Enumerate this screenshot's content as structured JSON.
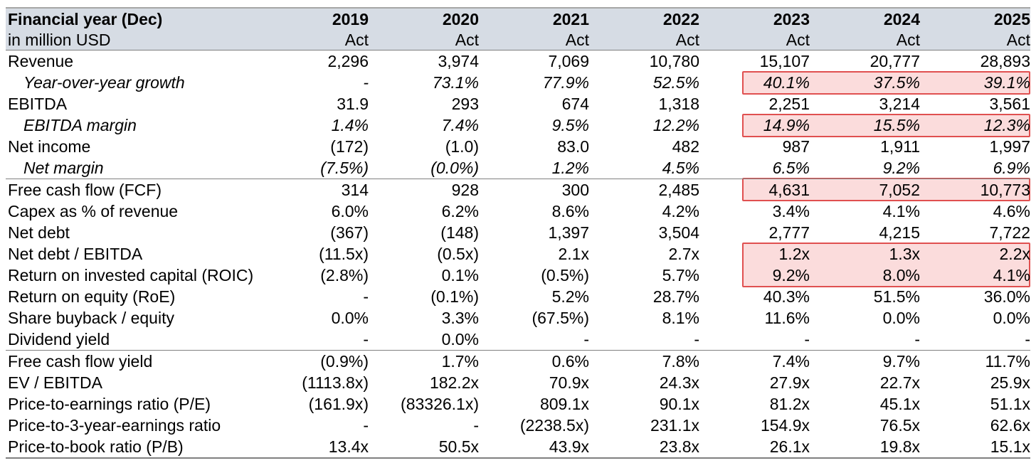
{
  "header": {
    "title": "Financial year (Dec)",
    "subtitle": "in million USD",
    "years": [
      "2019",
      "2020",
      "2021",
      "2022",
      "2023",
      "2024",
      "2025"
    ],
    "basis": [
      "Act",
      "Act",
      "Act",
      "Act",
      "Act",
      "Act",
      "Act"
    ]
  },
  "rows": [
    {
      "label": "Revenue",
      "values": [
        "2,296",
        "3,974",
        "7,069",
        "10,780",
        "15,107",
        "20,777",
        "28,893"
      ]
    },
    {
      "label": "Year-over-year growth",
      "values": [
        "-",
        "73.1%",
        "77.9%",
        "52.5%",
        "40.1%",
        "37.5%",
        "39.1%"
      ]
    },
    {
      "label": "EBITDA",
      "values": [
        "31.9",
        "293",
        "674",
        "1,318",
        "2,251",
        "3,214",
        "3,561"
      ]
    },
    {
      "label": "EBITDA margin",
      "values": [
        "1.4%",
        "7.4%",
        "9.5%",
        "12.2%",
        "14.9%",
        "15.5%",
        "12.3%"
      ]
    },
    {
      "label": "Net income",
      "values": [
        "(172)",
        "(1.0)",
        "83.0",
        "482",
        "987",
        "1,911",
        "1,997"
      ]
    },
    {
      "label": "Net margin",
      "values": [
        "(7.5%)",
        "(0.0%)",
        "1.2%",
        "4.5%",
        "6.5%",
        "9.2%",
        "6.9%"
      ]
    },
    {
      "label": "Free cash flow (FCF)",
      "values": [
        "314",
        "928",
        "300",
        "2,485",
        "4,631",
        "7,052",
        "10,773"
      ]
    },
    {
      "label": "Capex as % of revenue",
      "values": [
        "6.0%",
        "6.2%",
        "8.6%",
        "4.2%",
        "3.4%",
        "4.1%",
        "4.6%"
      ]
    },
    {
      "label": "Net debt",
      "values": [
        "(367)",
        "(148)",
        "1,397",
        "3,504",
        "2,777",
        "4,215",
        "7,722"
      ]
    },
    {
      "label": "Net debt / EBITDA",
      "values": [
        "(11.5x)",
        "(0.5x)",
        "2.1x",
        "2.7x",
        "1.2x",
        "1.3x",
        "2.2x"
      ]
    },
    {
      "label": "Return on invested capital (ROIC)",
      "values": [
        "(2.8%)",
        "0.1%",
        "(0.5%)",
        "5.7%",
        "9.2%",
        "8.0%",
        "4.1%"
      ]
    },
    {
      "label": "Return on equity (RoE)",
      "values": [
        "-",
        "(0.1%)",
        "5.2%",
        "28.7%",
        "40.3%",
        "51.5%",
        "36.0%"
      ]
    },
    {
      "label": "Share buyback / equity",
      "values": [
        "0.0%",
        "3.3%",
        "(67.5%)",
        "8.1%",
        "11.6%",
        "0.0%",
        "0.0%"
      ]
    },
    {
      "label": "Dividend yield",
      "values": [
        "-",
        "0.0%",
        "-",
        "-",
        "-",
        "-",
        "-"
      ]
    },
    {
      "label": "Free cash flow yield",
      "values": [
        "(0.9%)",
        "1.7%",
        "0.6%",
        "7.8%",
        "7.4%",
        "9.7%",
        "11.7%"
      ]
    },
    {
      "label": "EV / EBITDA",
      "values": [
        "(1113.8x)",
        "182.2x",
        "70.9x",
        "24.3x",
        "27.9x",
        "22.7x",
        "25.9x"
      ]
    },
    {
      "label": "Price-to-earnings ratio (P/E)",
      "values": [
        "(161.9x)",
        "(83326.1x)",
        "809.1x",
        "90.1x",
        "81.2x",
        "45.1x",
        "51.1x"
      ]
    },
    {
      "label": "Price-to-3-year-earnings ratio",
      "values": [
        "-",
        "-",
        "(2238.5x)",
        "231.1x",
        "154.9x",
        "76.5x",
        "62.6x"
      ]
    },
    {
      "label": "Price-to-book ratio (P/B)",
      "values": [
        "13.4x",
        "50.5x",
        "43.9x",
        "23.8x",
        "26.1x",
        "19.8x",
        "15.1x"
      ]
    }
  ],
  "highlight": {
    "fill": "#fbdcdc",
    "border": "#e05050"
  },
  "colors": {
    "header_bg": "#d6dce4"
  }
}
